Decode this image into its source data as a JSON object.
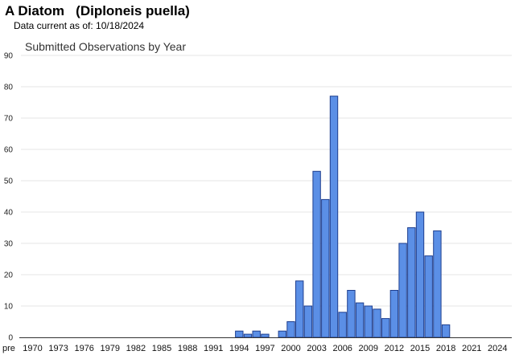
{
  "header": {
    "title": "A Diatom   (Diploneis puella)",
    "data_current": "Data current as of: 10/18/2024"
  },
  "colors": {
    "bar_fill": "#5b8fe6",
    "bar_stroke": "#1f3f8f",
    "grid": "#e6e6e6",
    "axis": "#333333"
  },
  "chart_data": {
    "type": "bar",
    "title": "Submitted Observations by Year",
    "xlabel": "",
    "ylabel": "",
    "ylim": [
      0,
      90
    ],
    "yticks": [
      0,
      10,
      20,
      30,
      40,
      50,
      60,
      70,
      80,
      90
    ],
    "grid": true,
    "legend": "none",
    "categories": [
      "pre",
      "1970",
      "1971",
      "1972",
      "1973",
      "1974",
      "1975",
      "1976",
      "1977",
      "1978",
      "1979",
      "1980",
      "1981",
      "1982",
      "1983",
      "1984",
      "1985",
      "1986",
      "1987",
      "1988",
      "1989",
      "1990",
      "1991",
      "1992",
      "1993",
      "1994",
      "1995",
      "1996",
      "1997",
      "1998",
      "1999",
      "2000",
      "2001",
      "2002",
      "2003",
      "2004",
      "2005",
      "2006",
      "2007",
      "2008",
      "2009",
      "2010",
      "2011",
      "2012",
      "2013",
      "2014",
      "2015",
      "2016",
      "2017",
      "2018",
      "2019",
      "2020",
      "2021",
      "2022",
      "2023",
      "2024"
    ],
    "values": [
      0,
      0,
      0,
      0,
      0,
      0,
      0,
      0,
      0,
      0,
      0,
      0,
      0,
      0,
      0,
      0,
      0,
      0,
      0,
      0,
      0,
      0,
      0,
      0,
      0,
      2,
      1,
      2,
      1,
      0,
      2,
      5,
      18,
      10,
      53,
      44,
      77,
      8,
      15,
      11,
      10,
      9,
      6,
      15,
      30,
      35,
      40,
      26,
      34,
      4,
      0,
      0,
      0,
      0,
      0,
      0
    ],
    "tick_labels": [
      "pre",
      "1970",
      "1973",
      "1976",
      "1979",
      "1982",
      "1985",
      "1988",
      "1991",
      "1994",
      "1997",
      "2000",
      "2003",
      "2006",
      "2009",
      "2012",
      "2015",
      "2018",
      "2021",
      "2024"
    ]
  }
}
